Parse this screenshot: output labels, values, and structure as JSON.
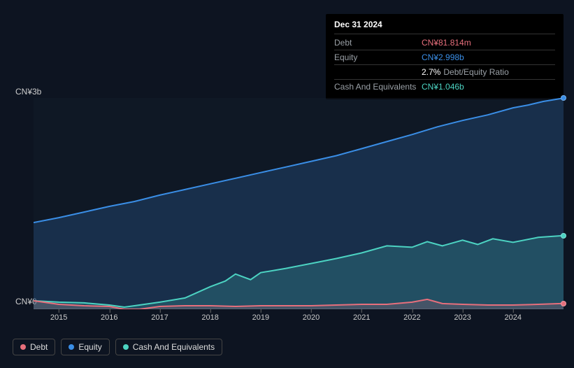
{
  "tooltip": {
    "title": "Dec 31 2024",
    "rows": [
      {
        "label": "Debt",
        "value": "CN¥81.814m",
        "color": "#e76f7c"
      },
      {
        "label": "Equity",
        "value": "CN¥2.998b",
        "color": "#3a8ee6"
      },
      {
        "label": "",
        "value": "2.7%",
        "sub": "Debt/Equity Ratio",
        "color": "#ffffff"
      },
      {
        "label": "Cash And Equivalents",
        "value": "CN¥1.046b",
        "color": "#4cd3c2"
      }
    ]
  },
  "chart": {
    "type": "area",
    "y_range_billion": [
      0,
      3
    ],
    "x_range_year": [
      2014.5,
      2025.0
    ],
    "y_label_top": "CN¥3b",
    "y_label_bottom": "CN¥0",
    "x_ticks": [
      2015,
      2016,
      2017,
      2018,
      2019,
      2020,
      2021,
      2022,
      2023,
      2024
    ],
    "background": "#0d1421",
    "plot_background": "#151f2e",
    "series": [
      {
        "name": "Equity",
        "key": "equity",
        "color": "#3a8ee6",
        "fill": "rgba(58,142,230,0.20)",
        "data": [
          [
            2014.5,
            1.23
          ],
          [
            2015.0,
            1.3
          ],
          [
            2015.5,
            1.38
          ],
          [
            2016.0,
            1.46
          ],
          [
            2016.5,
            1.53
          ],
          [
            2017.0,
            1.62
          ],
          [
            2017.5,
            1.7
          ],
          [
            2018.0,
            1.78
          ],
          [
            2018.5,
            1.86
          ],
          [
            2019.0,
            1.94
          ],
          [
            2019.5,
            2.02
          ],
          [
            2020.0,
            2.1
          ],
          [
            2020.5,
            2.18
          ],
          [
            2021.0,
            2.28
          ],
          [
            2021.5,
            2.38
          ],
          [
            2022.0,
            2.48
          ],
          [
            2022.5,
            2.59
          ],
          [
            2023.0,
            2.68
          ],
          [
            2023.5,
            2.76
          ],
          [
            2024.0,
            2.86
          ],
          [
            2024.3,
            2.9
          ],
          [
            2024.6,
            2.95
          ],
          [
            2025.0,
            2.998
          ]
        ]
      },
      {
        "name": "Cash And Equivalents",
        "key": "cash",
        "color": "#4cd3c2",
        "fill": "rgba(76,211,194,0.20)",
        "data": [
          [
            2014.5,
            0.12
          ],
          [
            2015.0,
            0.1
          ],
          [
            2015.5,
            0.09
          ],
          [
            2016.0,
            0.06
          ],
          [
            2016.3,
            0.03
          ],
          [
            2016.5,
            0.05
          ],
          [
            2017.0,
            0.1
          ],
          [
            2017.5,
            0.16
          ],
          [
            2018.0,
            0.32
          ],
          [
            2018.3,
            0.4
          ],
          [
            2018.5,
            0.5
          ],
          [
            2018.8,
            0.42
          ],
          [
            2019.0,
            0.52
          ],
          [
            2019.5,
            0.58
          ],
          [
            2020.0,
            0.65
          ],
          [
            2020.5,
            0.72
          ],
          [
            2021.0,
            0.8
          ],
          [
            2021.5,
            0.9
          ],
          [
            2022.0,
            0.88
          ],
          [
            2022.3,
            0.96
          ],
          [
            2022.6,
            0.9
          ],
          [
            2023.0,
            0.98
          ],
          [
            2023.3,
            0.92
          ],
          [
            2023.6,
            1.0
          ],
          [
            2024.0,
            0.95
          ],
          [
            2024.5,
            1.02
          ],
          [
            2025.0,
            1.046
          ]
        ]
      },
      {
        "name": "Debt",
        "key": "debt",
        "color": "#e76f7c",
        "fill": "rgba(231,111,124,0.18)",
        "data": [
          [
            2014.5,
            0.12
          ],
          [
            2015.0,
            0.07
          ],
          [
            2015.5,
            0.05
          ],
          [
            2016.0,
            0.04
          ],
          [
            2016.3,
            0.0
          ],
          [
            2016.6,
            0.0
          ],
          [
            2017.0,
            0.04
          ],
          [
            2017.5,
            0.05
          ],
          [
            2018.0,
            0.05
          ],
          [
            2018.5,
            0.04
          ],
          [
            2019.0,
            0.05
          ],
          [
            2019.5,
            0.05
          ],
          [
            2020.0,
            0.05
          ],
          [
            2020.5,
            0.06
          ],
          [
            2021.0,
            0.07
          ],
          [
            2021.5,
            0.07
          ],
          [
            2022.0,
            0.1
          ],
          [
            2022.3,
            0.14
          ],
          [
            2022.6,
            0.08
          ],
          [
            2023.0,
            0.07
          ],
          [
            2023.5,
            0.06
          ],
          [
            2024.0,
            0.06
          ],
          [
            2024.5,
            0.07
          ],
          [
            2025.0,
            0.0818
          ]
        ]
      }
    ]
  },
  "legend": [
    {
      "label": "Debt",
      "color": "#e76f7c"
    },
    {
      "label": "Equity",
      "color": "#3a8ee6"
    },
    {
      "label": "Cash And Equivalents",
      "color": "#4cd3c2"
    }
  ]
}
